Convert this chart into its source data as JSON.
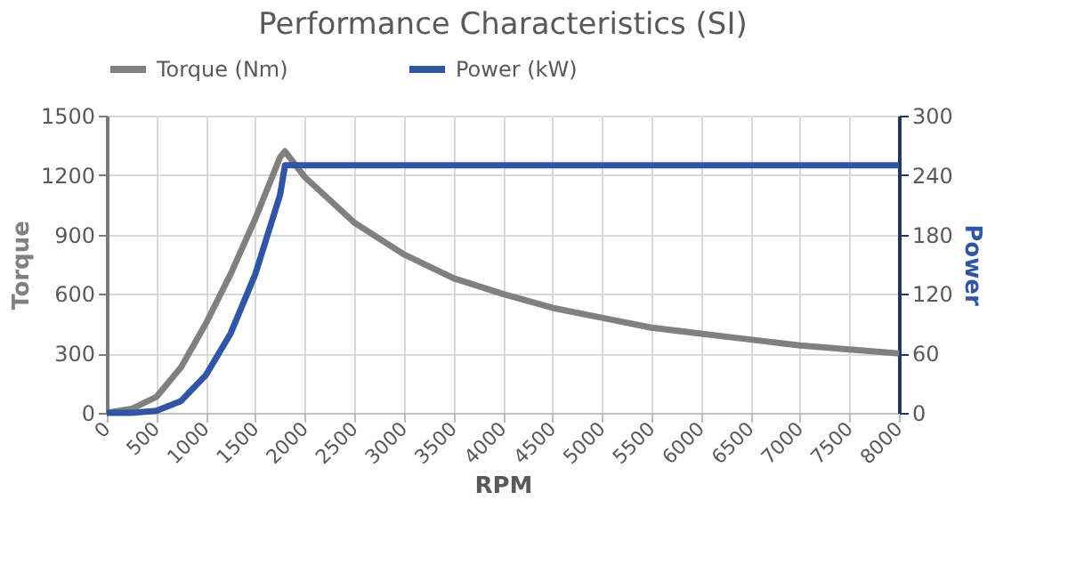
{
  "chart_data": {
    "type": "line",
    "title": "Performance Characteristics (SI)",
    "xlabel": "RPM",
    "ylabel": "Torque",
    "y2label": "Power",
    "xlim": [
      0,
      8000
    ],
    "xticks": [
      0,
      500,
      1000,
      1500,
      2000,
      2500,
      3000,
      3500,
      4000,
      4500,
      5000,
      5500,
      6000,
      6500,
      7000,
      7500,
      8000
    ],
    "ylim": [
      0,
      1500
    ],
    "yticks": [
      0,
      300,
      600,
      900,
      1200,
      1500
    ],
    "y2lim": [
      0,
      300
    ],
    "y2ticks": [
      0,
      60,
      120,
      180,
      240,
      300
    ],
    "grid": true,
    "legend": "top",
    "marker": "none",
    "line_style": "solid",
    "series": [
      {
        "name": "Torque (Nm)",
        "color": "#808080",
        "x": [
          0,
          250,
          500,
          750,
          1000,
          1250,
          1500,
          1750,
          1800,
          2000,
          2500,
          3000,
          3500,
          4000,
          4500,
          5000,
          5500,
          6000,
          6500,
          7000,
          7500,
          8000
        ],
        "values": [
          0,
          20,
          80,
          230,
          450,
          700,
          980,
          1290,
          1320,
          1190,
          960,
          800,
          680,
          600,
          530,
          480,
          430,
          400,
          370,
          340,
          320,
          300
        ]
      },
      {
        "name": "Power (kW)",
        "color": "#2f55a4",
        "axis": "y2",
        "x": [
          0,
          250,
          500,
          750,
          1000,
          1250,
          1500,
          1750,
          1800,
          8000
        ],
        "values": [
          0,
          0,
          2,
          12,
          38,
          80,
          140,
          220,
          250,
          250
        ]
      }
    ]
  }
}
